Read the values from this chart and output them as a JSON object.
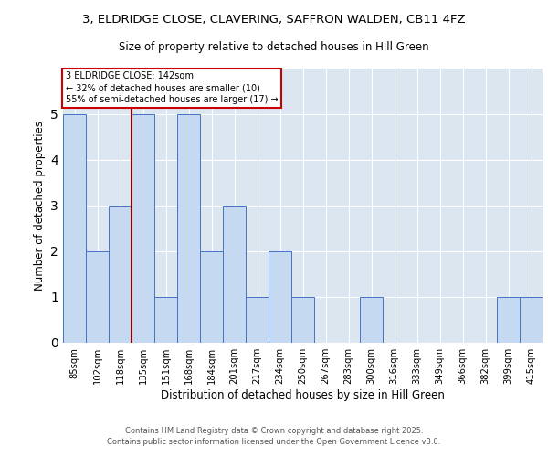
{
  "title": "3, ELDRIDGE CLOSE, CLAVERING, SAFFRON WALDEN, CB11 4FZ",
  "subtitle": "Size of property relative to detached houses in Hill Green",
  "xlabel": "Distribution of detached houses by size in Hill Green",
  "ylabel": "Number of detached properties",
  "categories": [
    "85sqm",
    "102sqm",
    "118sqm",
    "135sqm",
    "151sqm",
    "168sqm",
    "184sqm",
    "201sqm",
    "217sqm",
    "234sqm",
    "250sqm",
    "267sqm",
    "283sqm",
    "300sqm",
    "316sqm",
    "333sqm",
    "349sqm",
    "366sqm",
    "382sqm",
    "399sqm",
    "415sqm"
  ],
  "values": [
    5,
    2,
    3,
    5,
    1,
    5,
    2,
    3,
    1,
    2,
    1,
    0,
    0,
    1,
    0,
    0,
    0,
    0,
    0,
    1,
    1
  ],
  "bar_color": "#c5d9f1",
  "bar_edge_color": "#4472c4",
  "vline_index": 2.5,
  "vline_color": "#8b0000",
  "annotation_line1": "3 ELDRIDGE CLOSE: 142sqm",
  "annotation_line2": "← 32% of detached houses are smaller (10)",
  "annotation_line3": "55% of semi-detached houses are larger (17) →",
  "annotation_box_edge": "#cc0000",
  "ylim": [
    0,
    6
  ],
  "yticks": [
    0,
    1,
    2,
    3,
    4,
    5,
    6
  ],
  "background_color": "#dce6f1",
  "footer_line1": "Contains HM Land Registry data © Crown copyright and database right 2025.",
  "footer_line2": "Contains public sector information licensed under the Open Government Licence v3.0."
}
